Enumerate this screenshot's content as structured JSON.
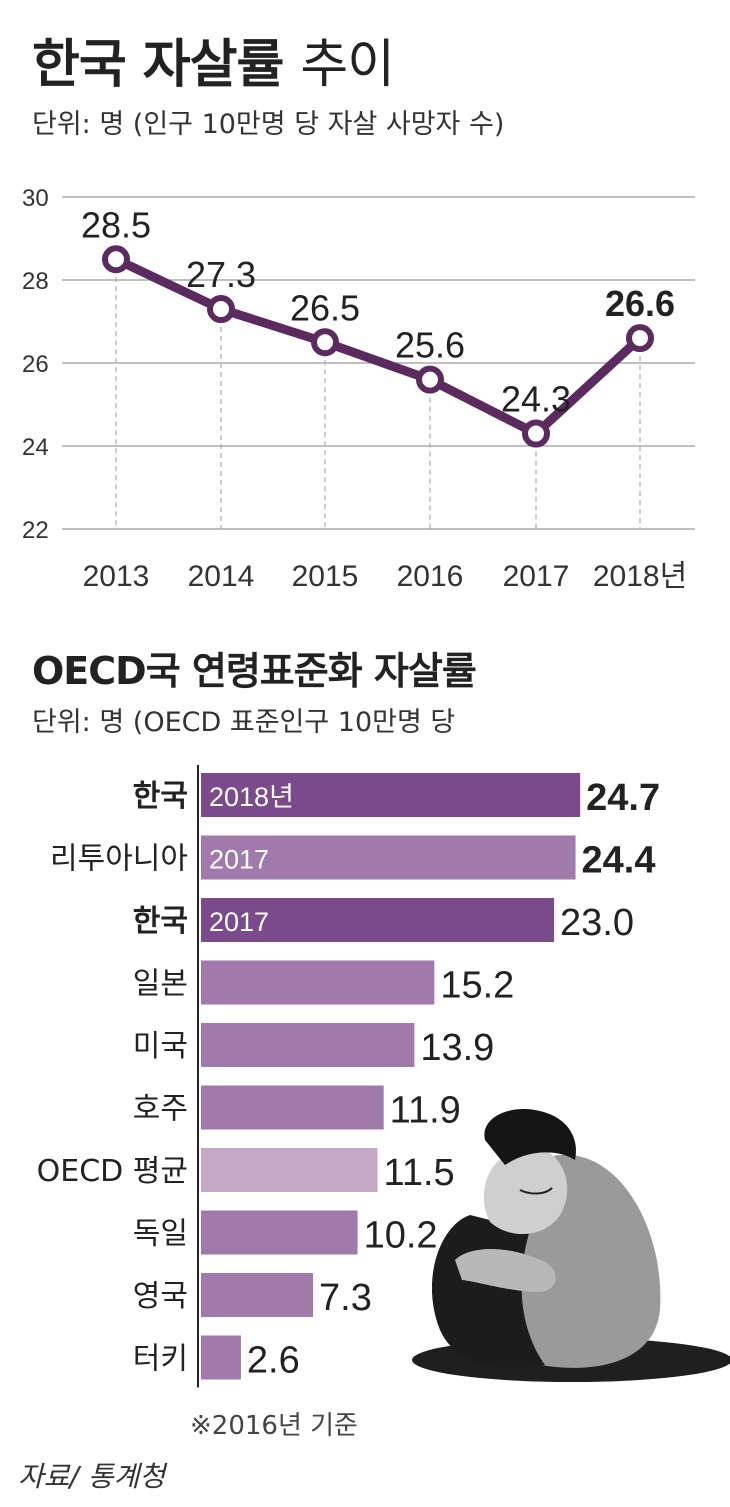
{
  "title_bold": "한국 자살률",
  "title_light": "추이",
  "unit_line": "단위: 명 (인구 10만명 당 자살 사망자 수)",
  "line_chart": {
    "type": "line",
    "x": [
      "2013",
      "2014",
      "2015",
      "2016",
      "2017",
      "2018"
    ],
    "x_tick_labels": [
      "2013",
      "2014",
      "2015",
      "2016",
      "2017",
      "2018년"
    ],
    "values": [
      28.5,
      27.3,
      26.5,
      25.6,
      24.3,
      26.6
    ],
    "value_labels": [
      "28.5",
      "27.3",
      "26.5",
      "25.6",
      "24.3",
      "26.6"
    ],
    "y_ticks": [
      "30",
      "28",
      "26",
      "24",
      "22"
    ],
    "ylim": [
      22,
      30
    ],
    "grid": true,
    "color": "#5b2a5f"
  },
  "bar_title": "OECD국 연령표준화 자살률",
  "bar_unit_line": "단위: 명 (OECD 표준인구 10만명 당",
  "bar_chart": {
    "type": "bar",
    "orientation": "horizontal",
    "categories": [
      "한국",
      "리투아니아",
      "한국",
      "일본",
      "미국",
      "호주",
      "OECD 평균",
      "독일",
      "영국",
      "터키"
    ],
    "values": [
      24.7,
      24.4,
      23.0,
      15.2,
      13.9,
      11.9,
      11.5,
      10.2,
      7.3,
      2.6
    ],
    "value_labels": [
      "24.7",
      "24.4",
      "23.0",
      "15.2",
      "13.9",
      "11.9",
      "11.5",
      "10.2",
      "7.3",
      "2.6"
    ],
    "bar_year_labels": [
      "2018년",
      "2017",
      "2017",
      "",
      "",
      "",
      "",
      "",
      "",
      ""
    ],
    "bar_colors": [
      "#7a4a8a",
      "#a07aaa",
      "#7a4a8a",
      "#a07aaa",
      "#a07aaa",
      "#a07aaa",
      "#c4a8c6",
      "#a07aaa",
      "#a07aaa",
      "#a07aaa"
    ],
    "bold_values": [
      true,
      true,
      false,
      false,
      false,
      false,
      false,
      false,
      false,
      false
    ],
    "bold_categories": [
      true,
      false,
      true,
      false,
      false,
      false,
      false,
      false,
      false,
      false
    ]
  },
  "footnote": "※2016년 기준",
  "source": "자료/ 통계청"
}
